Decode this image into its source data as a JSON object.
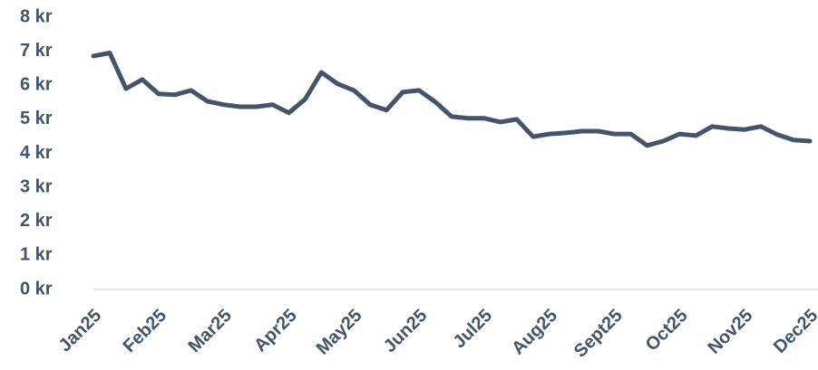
{
  "chart_data": {
    "type": "line",
    "categories": [
      "Jan25",
      null,
      null,
      null,
      "Feb25",
      null,
      null,
      null,
      "Mar25",
      null,
      null,
      null,
      "Apr25",
      null,
      null,
      null,
      "May25",
      null,
      null,
      null,
      "Jun25",
      null,
      null,
      null,
      "Jul25",
      null,
      null,
      null,
      "Aug25",
      null,
      null,
      null,
      "Sept25",
      null,
      null,
      null,
      "Oct25",
      null,
      null,
      null,
      "Nov25",
      null,
      null,
      null,
      "Dec25"
    ],
    "series": [
      {
        "name": null,
        "color": "#44546a",
        "values": [
          6.86,
          6.95,
          5.9,
          6.17,
          5.75,
          5.72,
          5.85,
          5.53,
          5.43,
          5.37,
          5.37,
          5.43,
          5.19,
          5.59,
          6.38,
          6.04,
          5.85,
          5.43,
          5.27,
          5.8,
          5.85,
          5.51,
          5.08,
          5.03,
          5.03,
          4.92,
          5.0,
          4.49,
          4.57,
          4.6,
          4.65,
          4.65,
          4.57,
          4.57,
          4.23,
          4.36,
          4.57,
          4.52,
          4.79,
          4.73,
          4.7,
          4.79,
          4.55,
          4.39,
          4.36
        ]
      }
    ],
    "ylim": [
      0,
      8
    ],
    "yticks": [
      {
        "value": 0,
        "label": "0 kr"
      },
      {
        "value": 1,
        "label": "1 kr"
      },
      {
        "value": 2,
        "label": "2 kr"
      },
      {
        "value": 3,
        "label": "3 kr"
      },
      {
        "value": 4,
        "label": "4 kr"
      },
      {
        "value": 5,
        "label": "5 kr"
      },
      {
        "value": 6,
        "label": "6 kr"
      },
      {
        "value": 7,
        "label": "7 kr"
      },
      {
        "value": 8,
        "label": "8 kr"
      }
    ],
    "grid": false
  }
}
